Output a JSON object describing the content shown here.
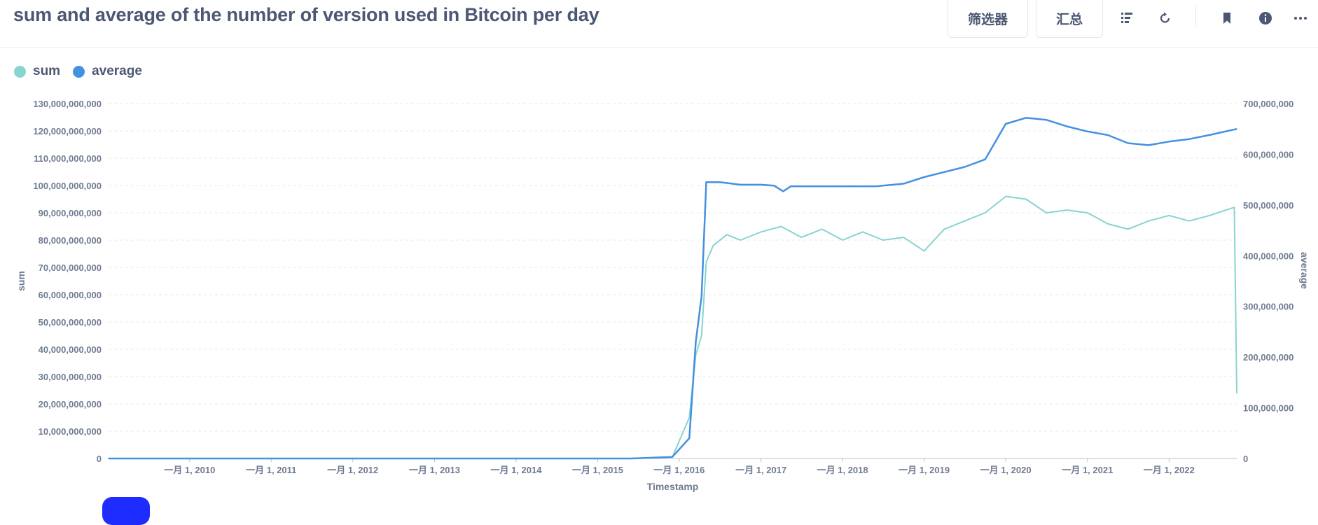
{
  "header": {
    "title": "sum and average of the number of version used in Bitcoin per day",
    "filter_label": "筛选器",
    "summarize_label": "汇总"
  },
  "icons": {
    "bars": "bars-list-icon",
    "refresh": "refresh-icon",
    "bookmark": "bookmark-icon",
    "info": "info-icon",
    "more": "ellipsis-icon"
  },
  "colors": {
    "sum": "#88d4d0",
    "average": "#4391e0",
    "accent_button": "#1f2cff"
  },
  "chart_data": {
    "type": "line",
    "title": "",
    "xlabel": "Timestamp",
    "ylabel": "sum",
    "y2label": "average",
    "x_range": [
      "2009-01-03",
      "2022-10-31"
    ],
    "x_ticks": [
      "一月 1, 2010",
      "一月 1, 2011",
      "一月 1, 2012",
      "一月 1, 2013",
      "一月 1, 2014",
      "一月 1, 2015",
      "一月 1, 2016",
      "一月 1, 2017",
      "一月 1, 2018",
      "一月 1, 2019",
      "一月 1, 2020",
      "一月 1, 2021",
      "一月 1, 2022"
    ],
    "ylim": [
      0,
      130000000000
    ],
    "y_ticks": [
      "0",
      "10,000,000,000",
      "20,000,000,000",
      "30,000,000,000",
      "40,000,000,000",
      "50,000,000,000",
      "60,000,000,000",
      "70,000,000,000",
      "80,000,000,000",
      "90,000,000,000",
      "100,000,000,000",
      "110,000,000,000",
      "120,000,000,000",
      "130,000,000,000"
    ],
    "y2lim": [
      0,
      700000000
    ],
    "y2_ticks": [
      "0",
      "100,000,000",
      "200,000,000",
      "300,000,000",
      "400,000,000",
      "500,000,000",
      "600,000,000",
      "700,000,000"
    ],
    "grid": true,
    "legend": "top-left",
    "series": [
      {
        "name": "sum",
        "axis": "left",
        "points": [
          [
            "2009-01-03",
            0
          ],
          [
            "2015-06-01",
            0
          ],
          [
            "2015-12-01",
            500000000
          ],
          [
            "2016-02-15",
            15000000000
          ],
          [
            "2016-03-15",
            38000000000
          ],
          [
            "2016-04-10",
            45000000000
          ],
          [
            "2016-05-01",
            72000000000
          ],
          [
            "2016-06-01",
            78000000000
          ],
          [
            "2016-08-01",
            82000000000
          ],
          [
            "2016-10-01",
            80000000000
          ],
          [
            "2017-01-01",
            83000000000
          ],
          [
            "2017-04-01",
            85000000000
          ],
          [
            "2017-07-01",
            81000000000
          ],
          [
            "2017-10-01",
            84000000000
          ],
          [
            "2018-01-01",
            80000000000
          ],
          [
            "2018-04-01",
            83000000000
          ],
          [
            "2018-07-01",
            80000000000
          ],
          [
            "2018-10-01",
            81000000000
          ],
          [
            "2019-01-01",
            76000000000
          ],
          [
            "2019-04-01",
            84000000000
          ],
          [
            "2019-07-01",
            87000000000
          ],
          [
            "2019-10-01",
            90000000000
          ],
          [
            "2020-01-01",
            96000000000
          ],
          [
            "2020-04-01",
            95000000000
          ],
          [
            "2020-07-01",
            90000000000
          ],
          [
            "2020-10-01",
            91000000000
          ],
          [
            "2021-01-01",
            90000000000
          ],
          [
            "2021-04-01",
            86000000000
          ],
          [
            "2021-07-01",
            84000000000
          ],
          [
            "2021-10-01",
            87000000000
          ],
          [
            "2022-01-01",
            89000000000
          ],
          [
            "2022-04-01",
            87000000000
          ],
          [
            "2022-07-01",
            89000000000
          ],
          [
            "2022-10-20",
            92000000000
          ],
          [
            "2022-10-31",
            24000000000
          ]
        ]
      },
      {
        "name": "average",
        "axis": "right",
        "points": [
          [
            "2009-01-03",
            0
          ],
          [
            "2015-06-01",
            0
          ],
          [
            "2015-12-01",
            3000000
          ],
          [
            "2016-02-15",
            40000000
          ],
          [
            "2016-03-15",
            230000000
          ],
          [
            "2016-04-10",
            320000000
          ],
          [
            "2016-05-01",
            545000000
          ],
          [
            "2016-07-01",
            545000000
          ],
          [
            "2016-10-01",
            540000000
          ],
          [
            "2017-01-01",
            540000000
          ],
          [
            "2017-03-01",
            538000000
          ],
          [
            "2017-04-10",
            527000000
          ],
          [
            "2017-05-15",
            537000000
          ],
          [
            "2017-08-01",
            537000000
          ],
          [
            "2018-01-01",
            537000000
          ],
          [
            "2018-06-01",
            537000000
          ],
          [
            "2018-10-01",
            542000000
          ],
          [
            "2019-01-01",
            555000000
          ],
          [
            "2019-04-01",
            565000000
          ],
          [
            "2019-07-01",
            575000000
          ],
          [
            "2019-10-01",
            590000000
          ],
          [
            "2020-01-01",
            660000000
          ],
          [
            "2020-04-01",
            672000000
          ],
          [
            "2020-07-01",
            668000000
          ],
          [
            "2020-10-01",
            655000000
          ],
          [
            "2021-01-01",
            645000000
          ],
          [
            "2021-04-01",
            638000000
          ],
          [
            "2021-07-01",
            622000000
          ],
          [
            "2021-10-01",
            618000000
          ],
          [
            "2022-01-01",
            625000000
          ],
          [
            "2022-04-01",
            630000000
          ],
          [
            "2022-07-01",
            638000000
          ],
          [
            "2022-10-31",
            650000000
          ]
        ]
      }
    ]
  }
}
